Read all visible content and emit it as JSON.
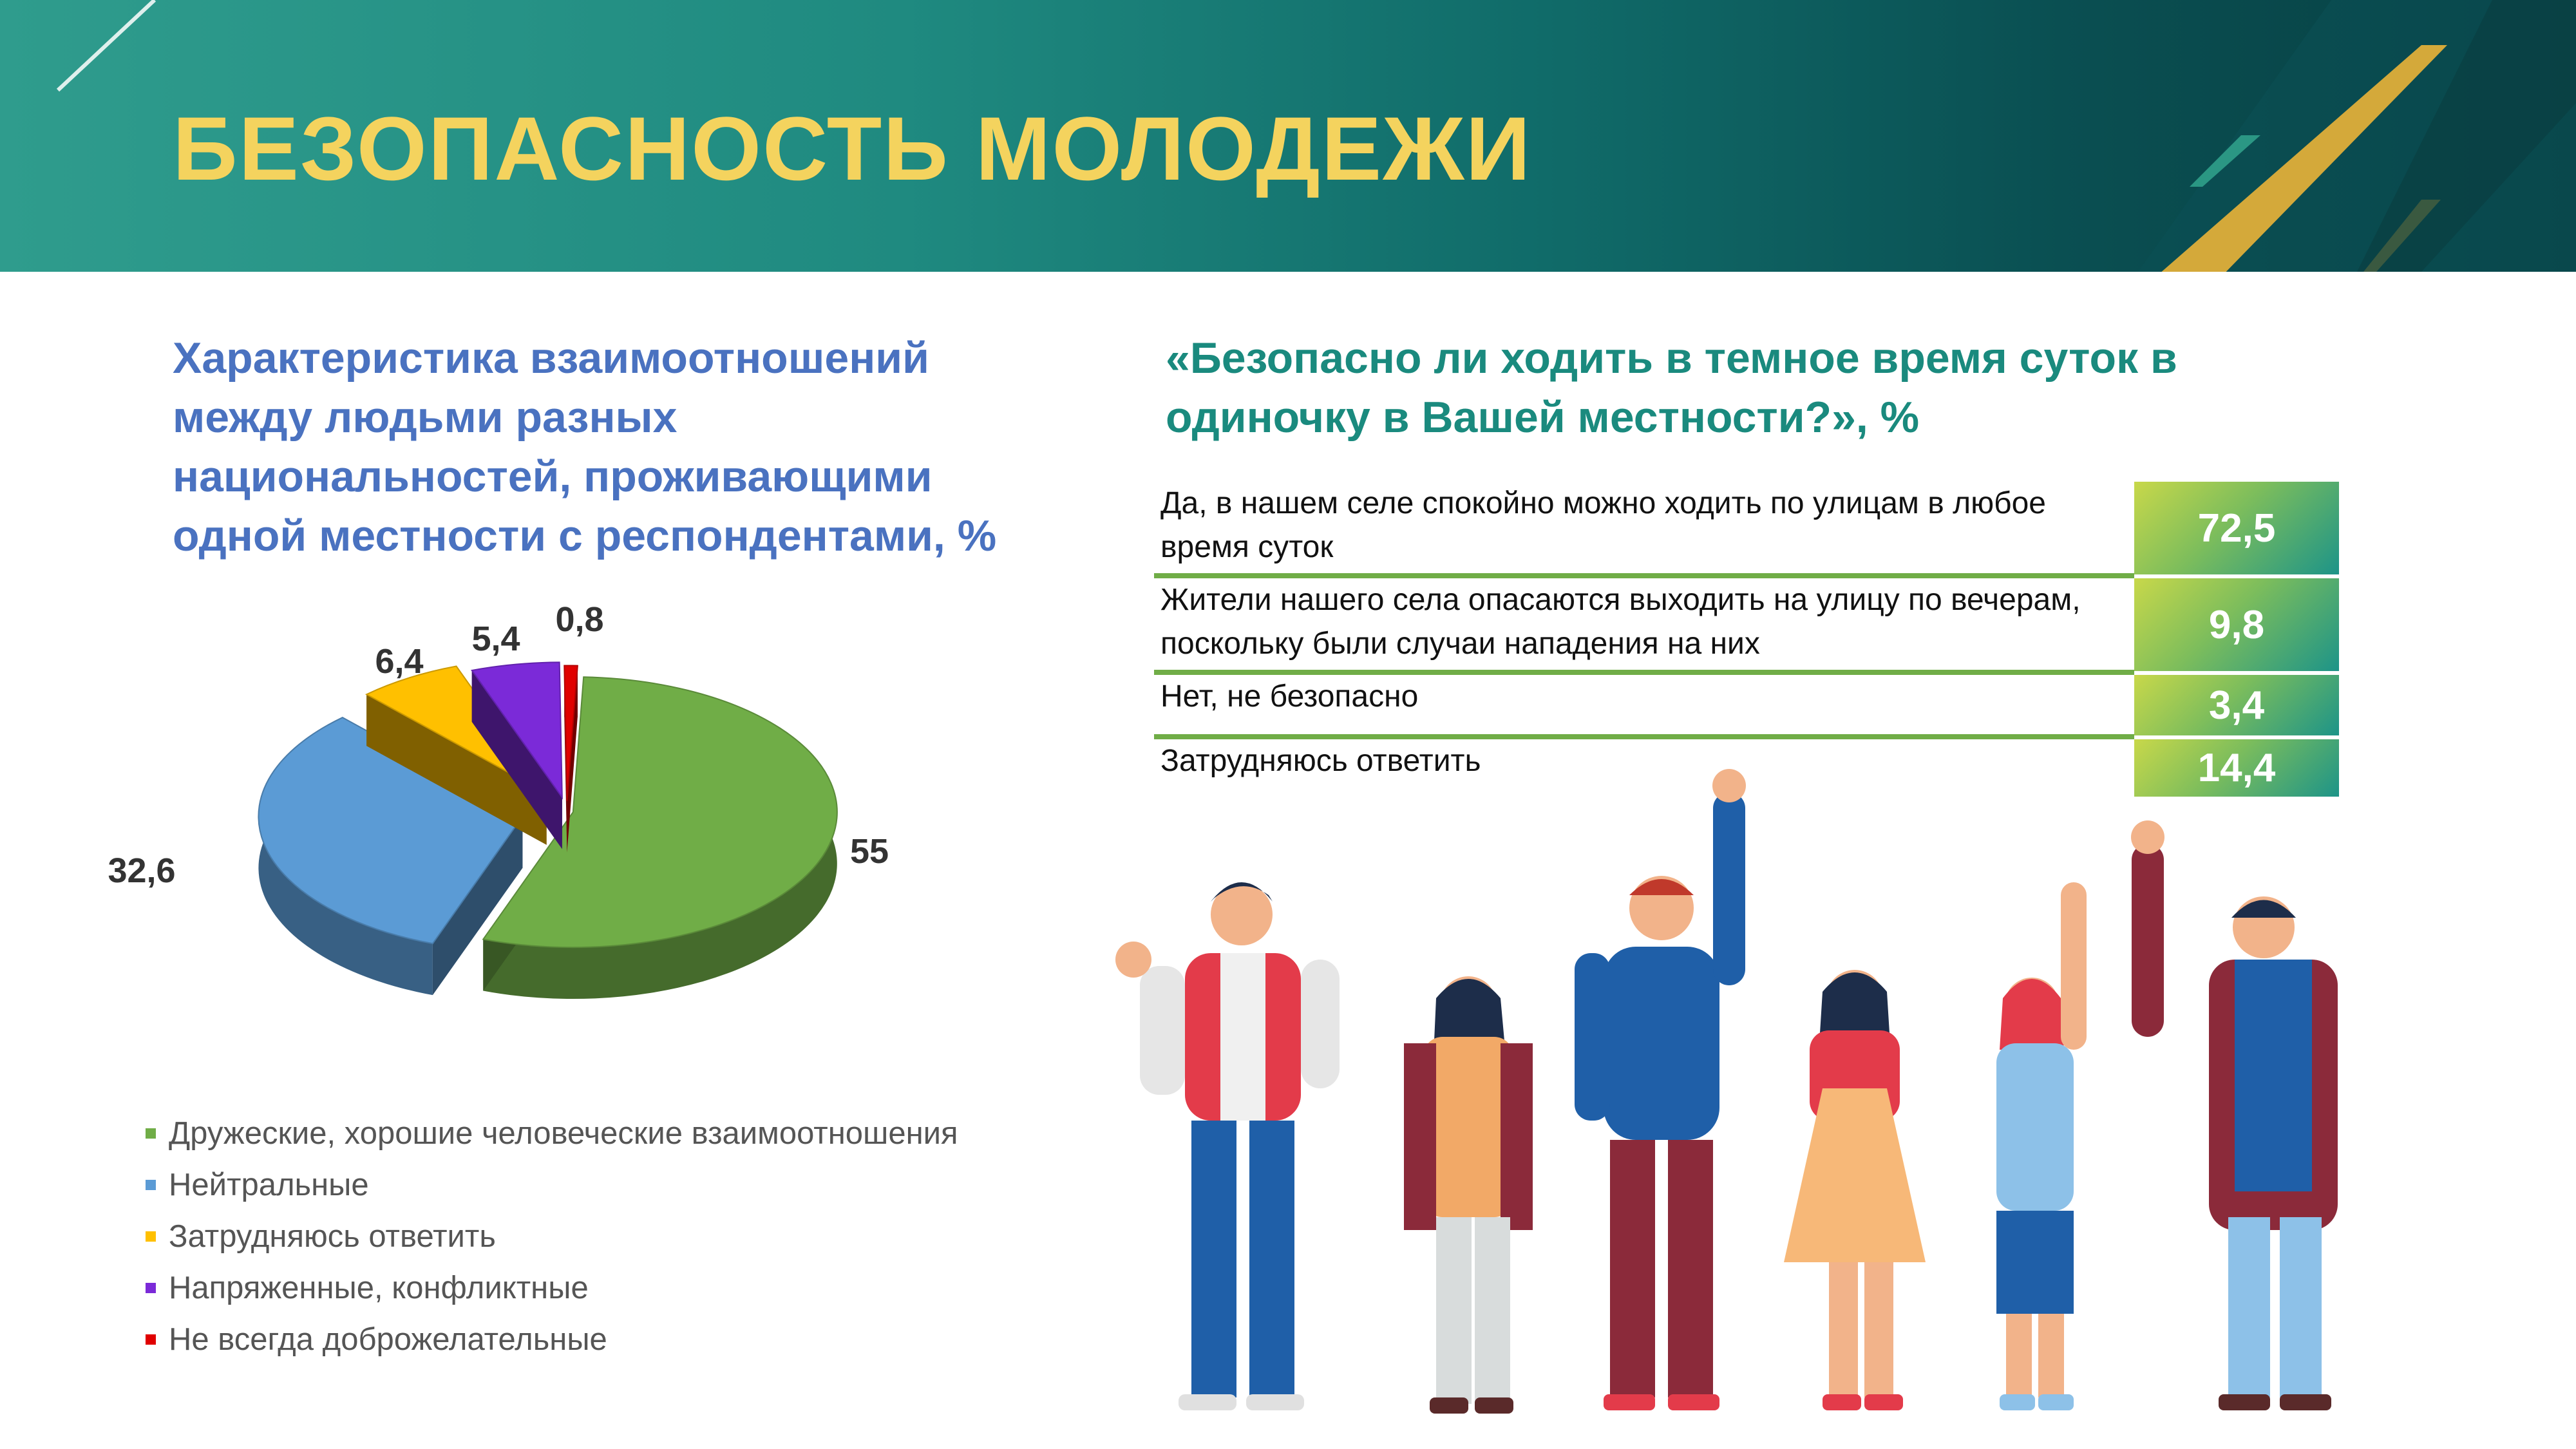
{
  "header": {
    "title": "БЕЗОПАСНОСТЬ МОЛОДЕЖИ",
    "colors": {
      "band": "#1f8a80",
      "title": "#f4d35e",
      "gold": "#d4a93a"
    }
  },
  "left": {
    "title": "Характеристика взаимоотношений между людьми разных национальностей, проживающими одной местности с респондентами, %"
  },
  "right": {
    "title": "«Безопасно ли ходить в темное время суток в одиночку в Вашей местности?», %"
  },
  "chart_data": [
    {
      "type": "pie",
      "title": "Характеристика взаимоотношений между людьми разных национальностей, проживающими одной местности с респондентами, %",
      "slices": [
        {
          "label": "Дружеские, хорошие человеческие взаимоотношения",
          "value": 55,
          "value_text": "55",
          "color": "#70ad47"
        },
        {
          "label": "Нейтральные",
          "value": 32.6,
          "value_text": "32,6",
          "color": "#5b9bd5"
        },
        {
          "label": "Затрудняюсь ответить",
          "value": 6.4,
          "value_text": "6,4",
          "color": "#ffc000"
        },
        {
          "label": "Напряженные, конфликтные",
          "value": 5.4,
          "value_text": "5,4",
          "color": "#7b2ad8"
        },
        {
          "label": "Не всегда доброжелательные",
          "value": 0.8,
          "value_text": "0,8",
          "color": "#e00000"
        }
      ],
      "legend": "bottom-left",
      "style": "3d-exploded"
    },
    {
      "type": "table",
      "title": "«Безопасно ли ходить в темное время суток в одиночку в Вашей местности?», %",
      "rows": [
        {
          "label": "Да, в нашем селе спокойно можно ходить по улицам в любое время суток",
          "value": 72.5,
          "value_text": "72,5"
        },
        {
          "label": "Жители нашего села опасаются выходить на улицу по вечерам, поскольку были случаи нападения на них",
          "value": 9.8,
          "value_text": "9,8"
        },
        {
          "label": "Нет, не безопасно",
          "value": 3.4,
          "value_text": "3,4"
        },
        {
          "label": "Затрудняюсь ответить",
          "value": 14.4,
          "value_text": "14,4"
        }
      ]
    }
  ]
}
